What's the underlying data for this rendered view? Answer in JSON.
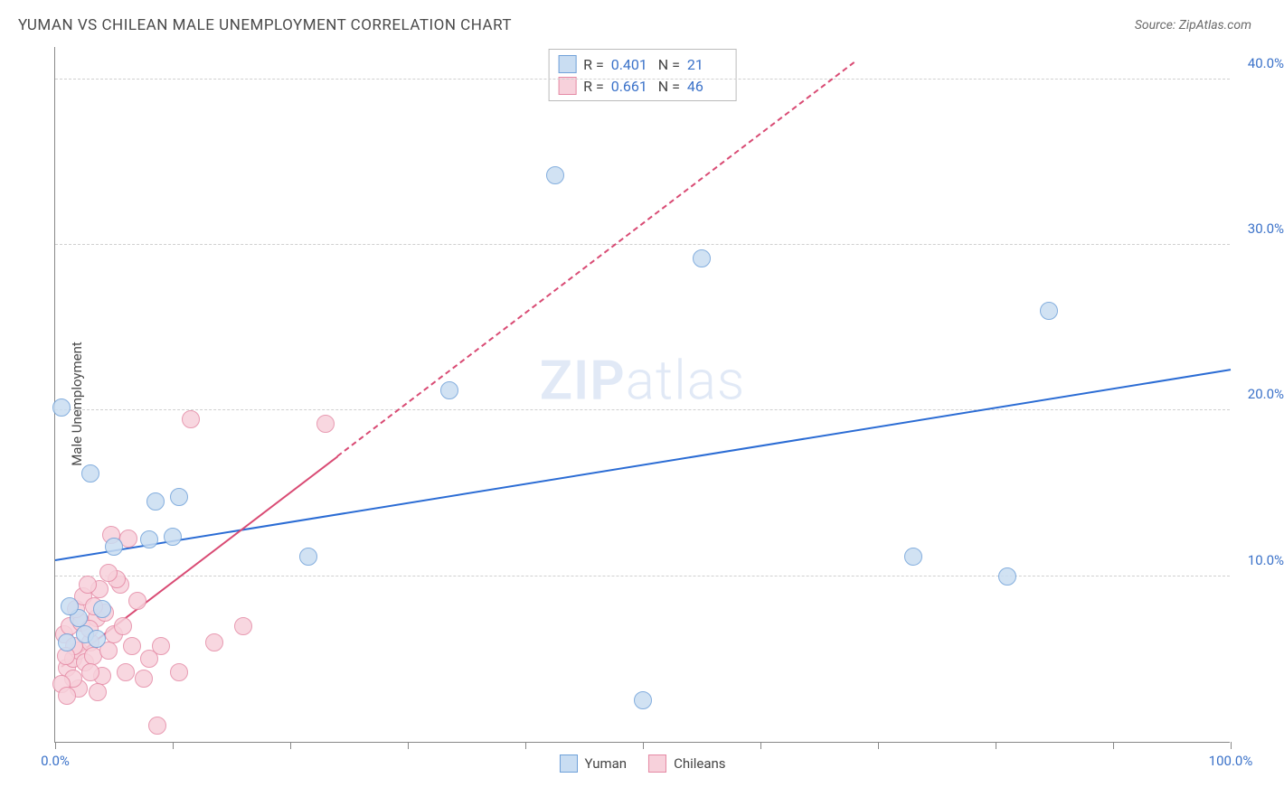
{
  "header": {
    "title": "YUMAN VS CHILEAN MALE UNEMPLOYMENT CORRELATION CHART",
    "source": "Source: ZipAtlas.com"
  },
  "ylabel": "Male Unemployment",
  "watermark_zip": "ZIP",
  "watermark_rest": "atlas",
  "chart": {
    "type": "scatter",
    "xlim": [
      0,
      100
    ],
    "ylim": [
      0,
      42
    ],
    "yticks": [
      10,
      20,
      30,
      40
    ],
    "ytick_labels": [
      "10.0%",
      "20.0%",
      "30.0%",
      "40.0%"
    ],
    "xticks": [
      0,
      10,
      20,
      30,
      40,
      50,
      60,
      70,
      80,
      90,
      100
    ],
    "xtick_labels": {
      "0": "0.0%",
      "100": "100.0%"
    },
    "grid_color": "#d0d0d0",
    "background": "#ffffff",
    "marker_radius": 10,
    "marker_border_width": 1.5,
    "series": [
      {
        "name": "Yuman",
        "fill": "#c9ddf2",
        "stroke": "#6fa1d9",
        "r_label": "R =",
        "r": "0.401",
        "n_label": "N =",
        "n": "21",
        "trend": {
          "color": "#2b6cd4",
          "width": 2,
          "x1": 0,
          "y1": 10.9,
          "x2": 100,
          "y2": 22.4,
          "dash_from_x": null
        },
        "points": [
          {
            "x": 0.5,
            "y": 20.2
          },
          {
            "x": 3.0,
            "y": 16.2
          },
          {
            "x": 8.5,
            "y": 14.5
          },
          {
            "x": 10.5,
            "y": 14.8
          },
          {
            "x": 2.0,
            "y": 7.5
          },
          {
            "x": 2.5,
            "y": 6.5
          },
          {
            "x": 4.0,
            "y": 8.0
          },
          {
            "x": 1.0,
            "y": 6.0
          },
          {
            "x": 3.5,
            "y": 6.2
          },
          {
            "x": 5.0,
            "y": 11.8
          },
          {
            "x": 8.0,
            "y": 12.2
          },
          {
            "x": 10.0,
            "y": 12.4
          },
          {
            "x": 21.5,
            "y": 11.2
          },
          {
            "x": 33.5,
            "y": 21.2
          },
          {
            "x": 42.5,
            "y": 34.2
          },
          {
            "x": 50.0,
            "y": 2.5
          },
          {
            "x": 55.0,
            "y": 29.2
          },
          {
            "x": 73.0,
            "y": 11.2
          },
          {
            "x": 81.0,
            "y": 10.0
          },
          {
            "x": 84.5,
            "y": 26.0
          },
          {
            "x": 1.2,
            "y": 8.2
          }
        ]
      },
      {
        "name": "Chileans",
        "fill": "#f7d1db",
        "stroke": "#e58aa5",
        "r_label": "R =",
        "r": "0.661",
        "n_label": "N =",
        "n": "46",
        "trend": {
          "color": "#d94b74",
          "width": 2,
          "x1": 0.5,
          "y1": 4.5,
          "x2": 24,
          "y2": 17.2,
          "dash_to_x": 68,
          "dash_to_y": 41.0
        },
        "points": [
          {
            "x": 1.0,
            "y": 4.5
          },
          {
            "x": 1.5,
            "y": 5.0
          },
          {
            "x": 2.0,
            "y": 5.5
          },
          {
            "x": 2.5,
            "y": 4.8
          },
          {
            "x": 3.0,
            "y": 6.0
          },
          {
            "x": 3.2,
            "y": 5.2
          },
          {
            "x": 0.8,
            "y": 6.5
          },
          {
            "x": 1.2,
            "y": 7.0
          },
          {
            "x": 2.2,
            "y": 7.2
          },
          {
            "x": 3.5,
            "y": 7.5
          },
          {
            "x": 4.0,
            "y": 4.0
          },
          {
            "x": 4.5,
            "y": 5.5
          },
          {
            "x": 5.0,
            "y": 6.5
          },
          {
            "x": 5.5,
            "y": 9.5
          },
          {
            "x": 6.0,
            "y": 4.2
          },
          {
            "x": 6.5,
            "y": 5.8
          },
          {
            "x": 7.0,
            "y": 8.5
          },
          {
            "x": 7.5,
            "y": 3.8
          },
          {
            "x": 1.8,
            "y": 8.0
          },
          {
            "x": 2.4,
            "y": 8.8
          },
          {
            "x": 3.8,
            "y": 9.2
          },
          {
            "x": 5.2,
            "y": 9.8
          },
          {
            "x": 8.7,
            "y": 1.0
          },
          {
            "x": 4.2,
            "y": 7.8
          },
          {
            "x": 3.0,
            "y": 4.2
          },
          {
            "x": 2.0,
            "y": 3.2
          },
          {
            "x": 1.5,
            "y": 3.8
          },
          {
            "x": 4.8,
            "y": 12.5
          },
          {
            "x": 6.2,
            "y": 12.3
          },
          {
            "x": 8.0,
            "y": 5.0
          },
          {
            "x": 9.0,
            "y": 5.8
          },
          {
            "x": 10.5,
            "y": 4.2
          },
          {
            "x": 11.5,
            "y": 19.5
          },
          {
            "x": 13.5,
            "y": 6.0
          },
          {
            "x": 16.0,
            "y": 7.0
          },
          {
            "x": 23.0,
            "y": 19.2
          },
          {
            "x": 0.5,
            "y": 3.5
          },
          {
            "x": 1.0,
            "y": 2.8
          },
          {
            "x": 3.6,
            "y": 3.0
          },
          {
            "x": 2.8,
            "y": 9.5
          },
          {
            "x": 4.5,
            "y": 10.2
          },
          {
            "x": 1.6,
            "y": 5.8
          },
          {
            "x": 2.9,
            "y": 6.8
          },
          {
            "x": 5.8,
            "y": 7.0
          },
          {
            "x": 3.3,
            "y": 8.2
          },
          {
            "x": 0.9,
            "y": 5.2
          }
        ]
      }
    ]
  },
  "bottom_legend": [
    {
      "label": "Yuman"
    },
    {
      "label": "Chileans"
    }
  ]
}
